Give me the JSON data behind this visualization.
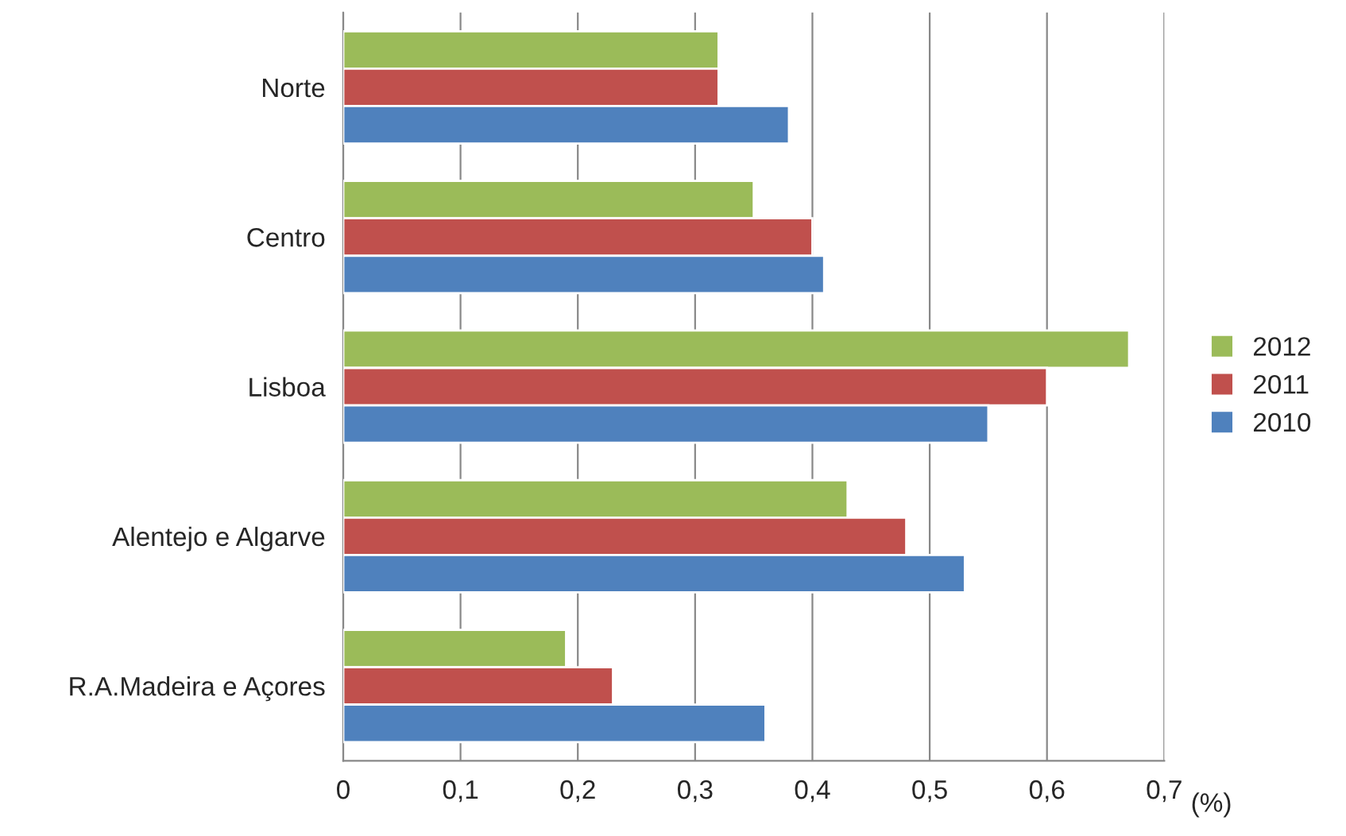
{
  "chart_data": {
    "type": "bar",
    "orientation": "horizontal",
    "categories": [
      "Norte",
      "Centro",
      "Lisboa",
      "Alentejo e Algarve",
      "R.A.Madeira e Açores"
    ],
    "series": [
      {
        "name": "2012",
        "color": "#9bbb59",
        "values": [
          0.32,
          0.35,
          0.67,
          0.43,
          0.19
        ]
      },
      {
        "name": "2011",
        "color": "#c0504d",
        "values": [
          0.32,
          0.4,
          0.6,
          0.48,
          0.23
        ]
      },
      {
        "name": "2010",
        "color": "#4f81bd",
        "values": [
          0.38,
          0.41,
          0.55,
          0.53,
          0.36
        ]
      }
    ],
    "xlabel": "(%)",
    "xlim": [
      0,
      0.7
    ],
    "xticks": [
      0,
      {
        "value": 0.1,
        "label": "0,1"
      },
      {
        "value": 0.2,
        "label": "0,2"
      },
      {
        "value": 0.3,
        "label": "0,3"
      },
      {
        "value": 0.4,
        "label": "0,4"
      },
      {
        "value": 0.5,
        "label": "0,5"
      },
      {
        "value": 0.6,
        "label": "0,6"
      },
      {
        "value": 0.7,
        "label": "0,7"
      }
    ],
    "grid": "x",
    "legend": "right"
  }
}
